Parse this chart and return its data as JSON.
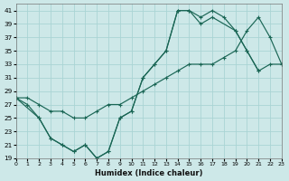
{
  "bg_color": "#cde8e8",
  "grid_color": "#aad4d4",
  "line_color": "#1a6655",
  "xlabel": "Humidex (Indice chaleur)",
  "xlim": [
    0,
    23
  ],
  "ylim": [
    19,
    42
  ],
  "xticks": [
    0,
    1,
    2,
    3,
    4,
    5,
    6,
    7,
    8,
    9,
    10,
    11,
    12,
    13,
    14,
    15,
    16,
    17,
    18,
    19,
    20,
    21,
    22,
    23
  ],
  "yticks": [
    19,
    21,
    23,
    25,
    27,
    29,
    31,
    33,
    35,
    37,
    39,
    41
  ],
  "curve1_x": [
    0,
    1,
    2,
    3,
    4,
    5,
    6,
    7,
    8,
    9,
    10,
    11,
    12,
    13,
    14,
    15,
    16,
    17,
    18,
    19,
    20,
    21
  ],
  "curve1_y": [
    28,
    27,
    25,
    22,
    21,
    20,
    21,
    19,
    20,
    25,
    26,
    31,
    33,
    35,
    41,
    41,
    40,
    41,
    40,
    38,
    35,
    32
  ],
  "curve2_x": [
    0,
    2,
    3,
    4,
    5,
    6,
    7,
    8,
    9,
    10,
    11,
    12,
    13,
    14,
    15,
    16,
    17,
    19,
    20,
    21,
    22,
    23
  ],
  "curve2_y": [
    28,
    25,
    22,
    21,
    20,
    21,
    19,
    20,
    25,
    26,
    31,
    33,
    35,
    41,
    41,
    39,
    40,
    38,
    35,
    32,
    33,
    33
  ],
  "curve3_x": [
    0,
    1,
    2,
    3,
    4,
    5,
    6,
    7,
    8,
    9,
    10,
    11,
    12,
    13,
    14,
    15,
    16,
    17,
    18,
    19,
    20,
    21,
    22,
    23
  ],
  "curve3_y": [
    28,
    28,
    27,
    26,
    26,
    25,
    25,
    26,
    27,
    27,
    28,
    29,
    30,
    31,
    32,
    33,
    33,
    33,
    34,
    35,
    38,
    40,
    37,
    33
  ]
}
